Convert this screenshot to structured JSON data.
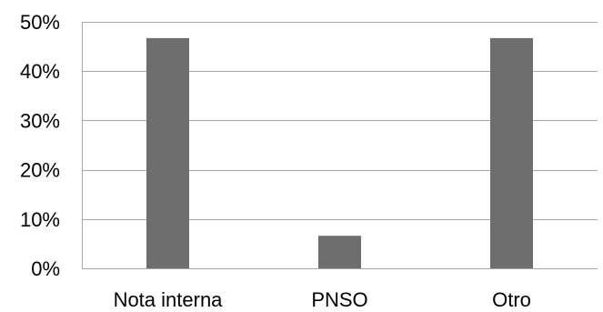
{
  "chart_data": {
    "type": "bar",
    "title": "",
    "xlabel": "",
    "ylabel": "",
    "categories": [
      "Nota interna",
      "PNSO",
      "Otro"
    ],
    "values": [
      46.7,
      6.6,
      46.7
    ],
    "value_unit": "percent",
    "ylim": [
      0,
      50
    ],
    "y_ticks": [
      0,
      10,
      20,
      30,
      40,
      50
    ],
    "y_tick_labels": [
      "0%",
      "10%",
      "20%",
      "30%",
      "40%",
      "50%"
    ],
    "grid": true,
    "legend": "none",
    "bar_color": "#6e6e6e",
    "grid_color": "#a6a6a6"
  }
}
